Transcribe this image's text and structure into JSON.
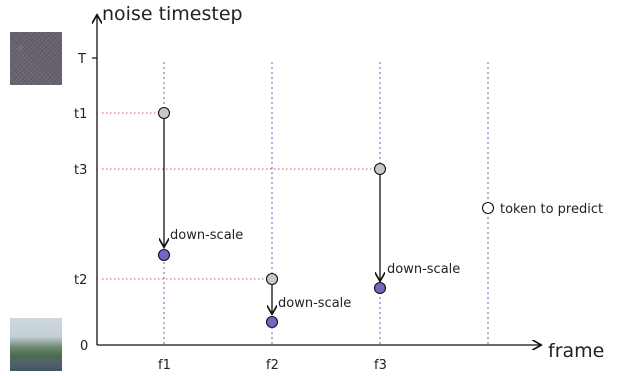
{
  "y_axis": {
    "label": "noise timestep",
    "ticks": [
      "T",
      "t1",
      "t3",
      "t2",
      "0"
    ]
  },
  "x_axis": {
    "label": "frame",
    "ticks": [
      "f1",
      "f2",
      "f3"
    ]
  },
  "annotations": {
    "down_scale_f1": "down-scale",
    "down_scale_f2": "down-scale",
    "down_scale_f3": "down-scale",
    "legend_token": "token to predict"
  },
  "colors": {
    "gray_node": "#c8c8c8",
    "purple_node": "#7b63c6",
    "grid_vertical": "#4b6fbf",
    "grid_horizontal": "#d9534f"
  }
}
